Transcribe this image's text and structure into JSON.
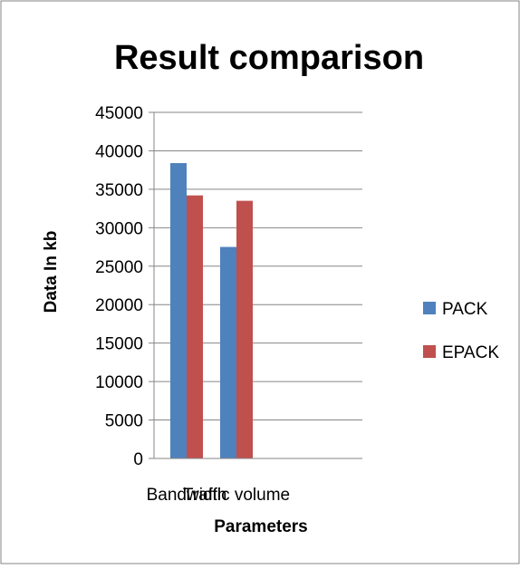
{
  "chart_data": {
    "type": "bar",
    "title": "Result comparison",
    "xlabel": "Parameters",
    "ylabel": "Data In kb",
    "categories": [
      "Bandwidth",
      "Traffic volume"
    ],
    "series": [
      {
        "name": "PACK",
        "values": [
          38400,
          27500
        ],
        "color": "#4F81BD"
      },
      {
        "name": "EPACK",
        "values": [
          34200,
          33500
        ],
        "color": "#C0504D"
      }
    ],
    "ylim": [
      0,
      45000
    ],
    "yticks": [
      "0",
      "5000",
      "10000",
      "15000",
      "20000",
      "25000",
      "30000",
      "35000",
      "40000",
      "45000"
    ],
    "grid": true,
    "legend": "right"
  }
}
